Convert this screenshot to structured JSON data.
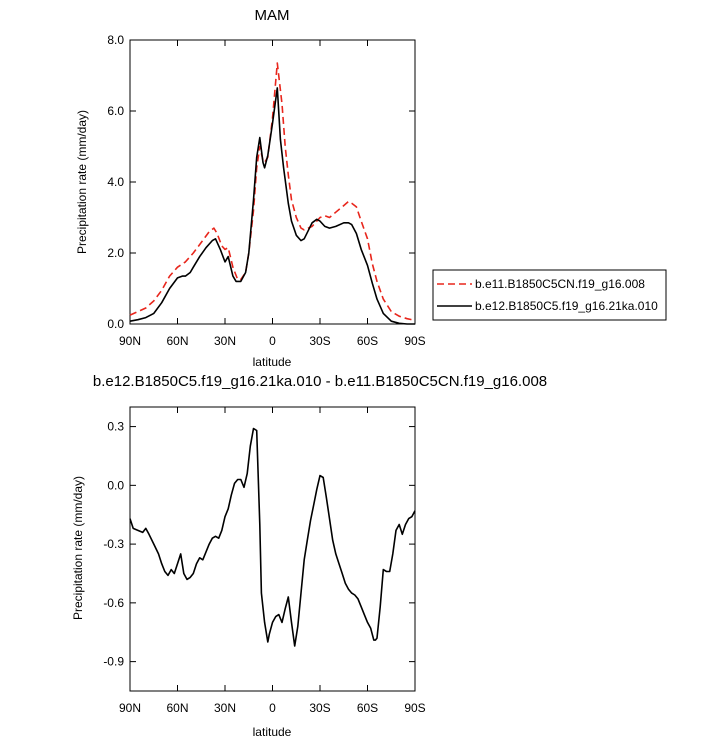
{
  "chart_data": [
    {
      "type": "line",
      "title": "MAM",
      "xlabel": "latitude",
      "ylabel": "Precipitation rate (mm/day)",
      "xlim": [
        90,
        -90
      ],
      "ylim": [
        0,
        8
      ],
      "x_ticks": [
        90,
        60,
        30,
        0,
        -30,
        -60,
        -90
      ],
      "x_tick_labels": [
        "90N",
        "60N",
        "30N",
        "0",
        "30S",
        "60S",
        "90S"
      ],
      "y_ticks": [
        0,
        2,
        4,
        6,
        8
      ],
      "y_tick_labels": [
        "0.0",
        "2.0",
        "4.0",
        "6.0",
        "8.0"
      ],
      "grid": false,
      "legend_placement": "right",
      "series": [
        {
          "name": "b.e11.B1850C5CN.f19_g16.008",
          "color": "#e8261c",
          "dash": "dashed",
          "x": [
            90,
            85,
            80,
            75,
            70,
            65,
            60,
            55,
            50,
            45,
            40,
            37,
            35,
            32,
            30,
            28,
            25,
            22,
            20,
            17,
            15,
            12,
            10,
            8,
            6,
            5,
            3,
            0,
            -3,
            -6,
            -8,
            -10,
            -12,
            -15,
            -18,
            -20,
            -25,
            -28,
            -30,
            -33,
            -36,
            -40,
            -44,
            -48,
            -50,
            -53,
            -56,
            -60,
            -63,
            -66,
            -70,
            -75,
            -80,
            -85,
            -90
          ],
          "y": [
            0.25,
            0.35,
            0.45,
            0.65,
            0.95,
            1.35,
            1.6,
            1.75,
            2.0,
            2.3,
            2.6,
            2.7,
            2.55,
            2.2,
            2.1,
            2.15,
            1.6,
            1.25,
            1.25,
            1.45,
            2.0,
            3.2,
            4.4,
            5.0,
            4.6,
            4.55,
            4.7,
            5.8,
            7.35,
            6.2,
            5.0,
            4.2,
            3.5,
            3.0,
            2.7,
            2.65,
            2.75,
            2.9,
            3.0,
            3.05,
            3.0,
            3.15,
            3.3,
            3.45,
            3.4,
            3.3,
            2.9,
            2.4,
            1.7,
            1.2,
            0.7,
            0.35,
            0.22,
            0.15,
            0.1
          ]
        },
        {
          "name": "b.e12.B1850C5.f19_g16.21ka.010",
          "color": "#000000",
          "dash": "solid",
          "x": [
            90,
            85,
            80,
            75,
            70,
            65,
            60,
            57,
            55,
            52,
            50,
            46,
            42,
            38,
            36,
            33,
            30,
            28,
            25,
            23,
            20,
            17,
            15,
            12,
            10,
            8,
            6,
            5,
            3,
            0,
            -3,
            -5,
            -7,
            -10,
            -12,
            -15,
            -18,
            -20,
            -25,
            -28,
            -30,
            -33,
            -36,
            -40,
            -45,
            -48,
            -50,
            -53,
            -56,
            -60,
            -63,
            -66,
            -70,
            -75,
            -80,
            -85,
            -90
          ],
          "y": [
            0.08,
            0.12,
            0.18,
            0.3,
            0.6,
            1.0,
            1.3,
            1.35,
            1.35,
            1.45,
            1.6,
            1.9,
            2.15,
            2.35,
            2.4,
            2.1,
            1.75,
            1.9,
            1.35,
            1.2,
            1.2,
            1.45,
            2.0,
            3.5,
            4.7,
            5.25,
            4.55,
            4.4,
            4.75,
            5.65,
            6.65,
            5.2,
            4.4,
            3.4,
            2.9,
            2.5,
            2.35,
            2.4,
            2.85,
            2.95,
            2.9,
            2.75,
            2.7,
            2.75,
            2.85,
            2.85,
            2.8,
            2.55,
            2.1,
            1.65,
            1.15,
            0.7,
            0.3,
            0.08,
            0.02,
            0.0,
            0.0
          ]
        }
      ]
    },
    {
      "type": "line",
      "title": "b.e12.B1850C5.f19_g16.21ka.010 - b.e11.B1850C5CN.f19_g16.008",
      "xlabel": "latitude",
      "ylabel": "Precipitation rate (mm/day)",
      "xlim": [
        90,
        -90
      ],
      "ylim": [
        -1.05,
        0.4
      ],
      "x_ticks": [
        90,
        60,
        30,
        0,
        -30,
        -60,
        -90
      ],
      "x_tick_labels": [
        "90N",
        "60N",
        "30N",
        "0",
        "30S",
        "60S",
        "90S"
      ],
      "y_ticks": [
        -0.9,
        -0.6,
        -0.3,
        0.0,
        0.3
      ],
      "y_tick_labels": [
        "-0.9",
        "-0.6",
        "-0.3",
        "0.0",
        "0.3"
      ],
      "grid": false,
      "series": [
        {
          "name": "",
          "color": "#000000",
          "dash": "solid",
          "x": [
            90,
            88,
            85,
            82,
            80,
            78,
            75,
            72,
            70,
            68,
            66,
            64,
            62,
            60,
            58,
            56,
            54,
            52,
            50,
            48,
            46,
            44,
            42,
            40,
            38,
            36,
            34,
            32,
            30,
            28,
            26,
            24,
            22,
            20,
            18,
            16,
            14,
            12,
            10,
            8,
            7,
            5,
            3,
            2,
            0,
            -2,
            -4,
            -6,
            -8,
            -10,
            -12,
            -14,
            -16,
            -18,
            -20,
            -22,
            -24,
            -26,
            -28,
            -30,
            -32,
            -34,
            -36,
            -38,
            -40,
            -42,
            -44,
            -46,
            -48,
            -50,
            -52,
            -54,
            -56,
            -58,
            -60,
            -62,
            -64,
            -65,
            -66,
            -68,
            -70,
            -72,
            -74,
            -76,
            -78,
            -80,
            -82,
            -84,
            -86,
            -88,
            -90
          ],
          "y": [
            -0.17,
            -0.22,
            -0.23,
            -0.24,
            -0.22,
            -0.25,
            -0.3,
            -0.35,
            -0.4,
            -0.44,
            -0.46,
            -0.43,
            -0.45,
            -0.4,
            -0.35,
            -0.45,
            -0.48,
            -0.47,
            -0.45,
            -0.4,
            -0.37,
            -0.38,
            -0.34,
            -0.3,
            -0.27,
            -0.26,
            -0.27,
            -0.23,
            -0.16,
            -0.12,
            -0.05,
            0.01,
            0.03,
            0.03,
            -0.01,
            0.06,
            0.2,
            0.29,
            0.28,
            -0.2,
            -0.55,
            -0.7,
            -0.8,
            -0.76,
            -0.7,
            -0.67,
            -0.66,
            -0.7,
            -0.63,
            -0.57,
            -0.7,
            -0.82,
            -0.72,
            -0.55,
            -0.38,
            -0.28,
            -0.18,
            -0.1,
            -0.02,
            0.05,
            0.04,
            -0.06,
            -0.17,
            -0.28,
            -0.35,
            -0.4,
            -0.45,
            -0.5,
            -0.53,
            -0.55,
            -0.56,
            -0.58,
            -0.62,
            -0.66,
            -0.7,
            -0.73,
            -0.79,
            -0.79,
            -0.78,
            -0.62,
            -0.43,
            -0.44,
            -0.44,
            -0.35,
            -0.23,
            -0.2,
            -0.25,
            -0.2,
            -0.17,
            -0.16,
            -0.13
          ]
        }
      ]
    }
  ]
}
